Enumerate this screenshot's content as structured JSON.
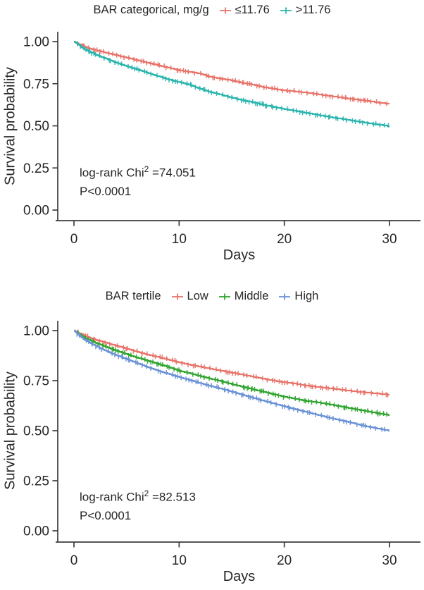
{
  "chart_data": [
    {
      "type": "line",
      "subtype": "kaplan-meier-survival",
      "title": "BAR categorical, mg/g",
      "xlabel": "Days",
      "ylabel": "Survival probability",
      "xlim": [
        0,
        30
      ],
      "ylim": [
        0,
        1
      ],
      "grid": false,
      "legend_position": "top",
      "xticks": [
        0,
        10,
        20,
        30
      ],
      "xtick_labels": [
        "0",
        "10",
        "20",
        "30"
      ],
      "yticks": [
        1.0,
        0.75,
        0.5,
        0.25,
        0.0
      ],
      "ytick_labels": [
        "1.00",
        "0.75",
        "0.50",
        "0.25",
        "0.00"
      ],
      "x": [
        0,
        1,
        2,
        3,
        4,
        5,
        6,
        7,
        8,
        9,
        10,
        11,
        12,
        13,
        14,
        15,
        16,
        17,
        18,
        19,
        20,
        21,
        22,
        23,
        24,
        25,
        26,
        27,
        28,
        29,
        30
      ],
      "series": [
        {
          "name": "≤11.76",
          "color": "#E8756C",
          "values": [
            1.0,
            0.97,
            0.95,
            0.935,
            0.92,
            0.905,
            0.89,
            0.875,
            0.86,
            0.845,
            0.83,
            0.82,
            0.81,
            0.79,
            0.78,
            0.77,
            0.755,
            0.745,
            0.73,
            0.72,
            0.71,
            0.705,
            0.698,
            0.69,
            0.68,
            0.672,
            0.663,
            0.655,
            0.647,
            0.638,
            0.63
          ]
        },
        {
          "name": ">11.76",
          "color": "#2CB5AE",
          "values": [
            1.0,
            0.955,
            0.925,
            0.9,
            0.875,
            0.855,
            0.835,
            0.815,
            0.795,
            0.775,
            0.76,
            0.745,
            0.72,
            0.7,
            0.685,
            0.668,
            0.652,
            0.64,
            0.625,
            0.612,
            0.6,
            0.59,
            0.578,
            0.567,
            0.556,
            0.546,
            0.536,
            0.526,
            0.516,
            0.507,
            0.498
          ]
        }
      ],
      "stat_prefix": "log-rank Chi",
      "stat_sup": "2",
      "stat_suffix": " =74.051",
      "p_value": "P<0.0001"
    },
    {
      "type": "line",
      "subtype": "kaplan-meier-survival",
      "title": "BAR tertile",
      "xlabel": "Days",
      "ylabel": "Survival probability",
      "xlim": [
        0,
        30
      ],
      "ylim": [
        0,
        1
      ],
      "grid": false,
      "legend_position": "top",
      "xticks": [
        0,
        10,
        20,
        30
      ],
      "xtick_labels": [
        "0",
        "10",
        "20",
        "30"
      ],
      "yticks": [
        1.0,
        0.75,
        0.5,
        0.25,
        0.0
      ],
      "ytick_labels": [
        "1.00",
        "0.75",
        "0.50",
        "0.25",
        "0.00"
      ],
      "x": [
        0,
        1,
        2,
        3,
        4,
        5,
        6,
        7,
        8,
        9,
        10,
        11,
        12,
        13,
        14,
        15,
        16,
        17,
        18,
        19,
        20,
        21,
        22,
        23,
        24,
        25,
        26,
        27,
        28,
        29,
        30
      ],
      "series": [
        {
          "name": "Low",
          "color": "#E8756C",
          "values": [
            1.0,
            0.975,
            0.955,
            0.94,
            0.925,
            0.91,
            0.895,
            0.88,
            0.868,
            0.855,
            0.842,
            0.83,
            0.82,
            0.81,
            0.8,
            0.79,
            0.78,
            0.77,
            0.76,
            0.75,
            0.742,
            0.735,
            0.727,
            0.72,
            0.714,
            0.708,
            0.701,
            0.695,
            0.69,
            0.685,
            0.68
          ]
        },
        {
          "name": "Middle",
          "color": "#33A532",
          "values": [
            1.0,
            0.965,
            0.94,
            0.92,
            0.9,
            0.883,
            0.866,
            0.85,
            0.834,
            0.818,
            0.8,
            0.787,
            0.773,
            0.76,
            0.747,
            0.733,
            0.72,
            0.707,
            0.695,
            0.682,
            0.67,
            0.66,
            0.65,
            0.643,
            0.634,
            0.625,
            0.615,
            0.605,
            0.596,
            0.586,
            0.578
          ]
        },
        {
          "name": "High",
          "color": "#6B93D6",
          "values": [
            1.0,
            0.955,
            0.925,
            0.9,
            0.878,
            0.858,
            0.838,
            0.818,
            0.8,
            0.784,
            0.768,
            0.753,
            0.738,
            0.723,
            0.71,
            0.695,
            0.68,
            0.665,
            0.65,
            0.636,
            0.622,
            0.608,
            0.595,
            0.582,
            0.568,
            0.556,
            0.545,
            0.532,
            0.52,
            0.51,
            0.5
          ]
        }
      ],
      "stat_prefix": "log-rank Chi",
      "stat_sup": "2",
      "stat_suffix": " =82.513",
      "p_value": "P<0.0001"
    }
  ],
  "style": {
    "axis_color": "#3c3c3c",
    "text_color": "#262626",
    "background": "#ffffff"
  }
}
